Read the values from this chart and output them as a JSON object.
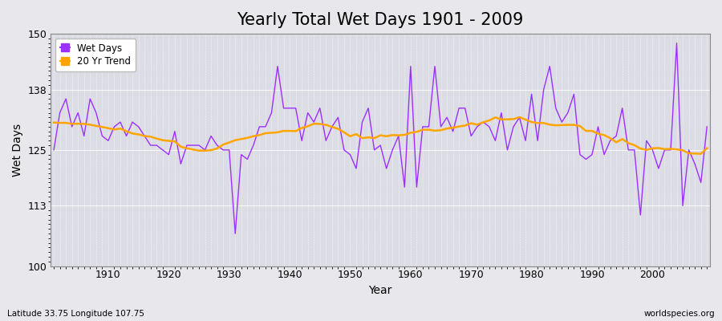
{
  "title": "Yearly Total Wet Days 1901 - 2009",
  "xlabel": "Year",
  "ylabel": "Wet Days",
  "footnote_left": "Latitude 33.75 Longitude 107.75",
  "footnote_right": "worldspecies.org",
  "legend_wet_days": "Wet Days",
  "legend_trend": "20 Yr Trend",
  "wet_days_color": "#9B30FF",
  "trend_color": "#FFA500",
  "fig_bg_color": "#E8E8EC",
  "plot_bg_color": "#DCDCE4",
  "ylim": [
    100,
    150
  ],
  "xlim": [
    1901,
    2009
  ],
  "yticks": [
    100,
    113,
    125,
    138,
    150
  ],
  "xticks": [
    1910,
    1920,
    1930,
    1940,
    1950,
    1960,
    1970,
    1980,
    1990,
    2000
  ],
  "years": [
    1901,
    1902,
    1903,
    1904,
    1905,
    1906,
    1907,
    1908,
    1909,
    1910,
    1911,
    1912,
    1913,
    1914,
    1915,
    1916,
    1917,
    1918,
    1919,
    1920,
    1921,
    1922,
    1923,
    1924,
    1925,
    1926,
    1927,
    1928,
    1929,
    1930,
    1931,
    1932,
    1933,
    1934,
    1935,
    1936,
    1937,
    1938,
    1939,
    1940,
    1941,
    1942,
    1943,
    1944,
    1945,
    1946,
    1947,
    1948,
    1949,
    1950,
    1951,
    1952,
    1953,
    1954,
    1955,
    1956,
    1957,
    1958,
    1959,
    1960,
    1961,
    1962,
    1963,
    1964,
    1965,
    1966,
    1967,
    1968,
    1969,
    1970,
    1971,
    1972,
    1973,
    1974,
    1975,
    1976,
    1977,
    1978,
    1979,
    1980,
    1981,
    1982,
    1983,
    1984,
    1985,
    1986,
    1987,
    1988,
    1989,
    1990,
    1991,
    1992,
    1993,
    1994,
    1995,
    1996,
    1997,
    1998,
    1999,
    2000,
    2001,
    2002,
    2003,
    2004,
    2005,
    2006,
    2007,
    2008,
    2009
  ],
  "wet_days": [
    125,
    133,
    136,
    130,
    133,
    128,
    136,
    133,
    128,
    127,
    130,
    131,
    128,
    131,
    130,
    128,
    126,
    126,
    125,
    124,
    129,
    122,
    126,
    126,
    126,
    125,
    128,
    126,
    125,
    125,
    107,
    124,
    123,
    126,
    130,
    130,
    133,
    143,
    134,
    134,
    134,
    127,
    133,
    131,
    134,
    127,
    130,
    132,
    125,
    124,
    121,
    131,
    134,
    125,
    126,
    121,
    125,
    128,
    117,
    143,
    117,
    130,
    130,
    143,
    130,
    132,
    129,
    134,
    134,
    128,
    130,
    131,
    130,
    127,
    133,
    125,
    130,
    132,
    127,
    137,
    127,
    138,
    143,
    134,
    131,
    133,
    137,
    124,
    123,
    124,
    130,
    124,
    127,
    128,
    134,
    125,
    125,
    111,
    127,
    125,
    121,
    125,
    125,
    148,
    113,
    125,
    122,
    118,
    130
  ]
}
